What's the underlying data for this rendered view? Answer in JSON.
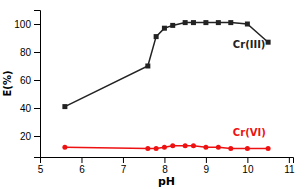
{
  "chart_data": {
    "type": "line",
    "x": [
      5.6,
      7.6,
      7.8,
      8.0,
      8.2,
      8.5,
      8.7,
      9.0,
      9.3,
      9.6,
      10.0,
      10.5
    ],
    "series": [
      {
        "color": "#222222",
        "marker": "square",
        "values": [
          41,
          70,
          91,
          97,
          99,
          101,
          101,
          101,
          101,
          101,
          100,
          87
        ]
      },
      {
        "color": "#ee1111",
        "marker": "circle",
        "values": [
          12,
          11,
          11,
          12,
          13,
          13,
          13,
          12,
          12,
          11,
          11,
          11
        ]
      }
    ],
    "xlabel": "pH",
    "ylabel": "E(%)",
    "xlim": [
      5,
      11.1
    ],
    "ylim": [
      5,
      110
    ],
    "xticks": [
      5,
      6,
      7,
      8,
      9,
      10,
      11
    ],
    "yticks": [
      20,
      40,
      60,
      80,
      100
    ],
    "annotations": [
      {
        "text": "Cr(III)",
        "x": 9.65,
        "y": 83,
        "color": "#222222"
      },
      {
        "text": "Cr(VI)",
        "x": 9.65,
        "y": 20,
        "color": "#ee1111"
      }
    ]
  }
}
